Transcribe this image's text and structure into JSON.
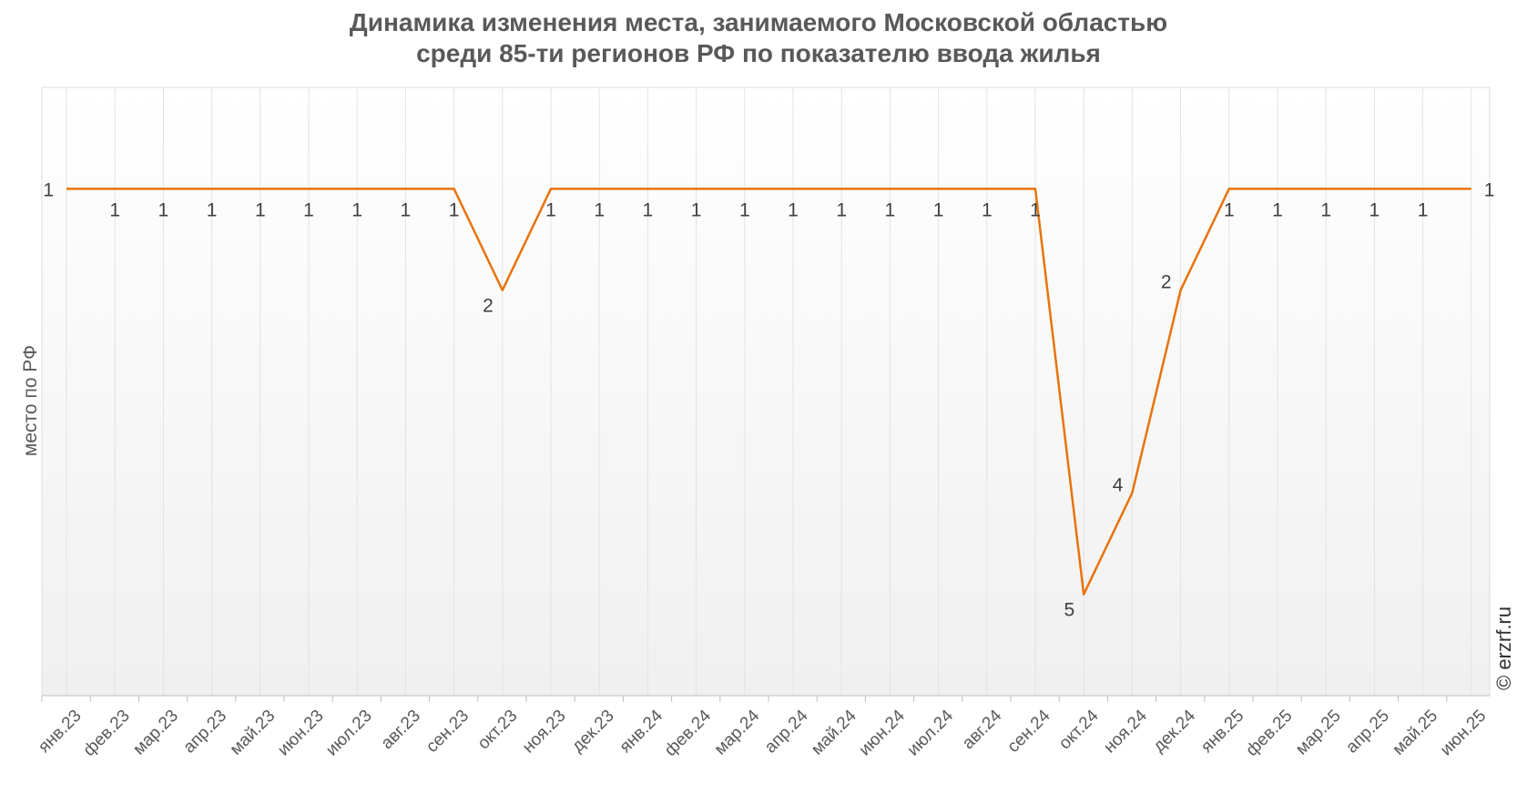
{
  "chart_data": {
    "type": "line",
    "title": [
      "Динамика изменения места, занимаемого Московской областью",
      "среди 85-ти регионов РФ по показателю ввода жилья"
    ],
    "ylabel": "место по РФ",
    "xlabel": "",
    "y_inverted": true,
    "ylim": [
      0,
      6
    ],
    "grid": "vertical",
    "categories": [
      "янв.23",
      "фев.23",
      "мар.23",
      "апр.23",
      "май.23",
      "июн.23",
      "июл.23",
      "авг.23",
      "сен.23",
      "окт.23",
      "ноя.23",
      "дек.23",
      "янв.24",
      "фев.24",
      "мар.24",
      "апр.24",
      "май.24",
      "июн.24",
      "июл.24",
      "авг.24",
      "сен.24",
      "окт.24",
      "ноя.24",
      "дек.24",
      "янв.25",
      "фев.25",
      "мар.25",
      "апр.25",
      "май.25",
      "июн.25"
    ],
    "series": [
      {
        "color": "#E8730C",
        "values": [
          1,
          1,
          1,
          1,
          1,
          1,
          1,
          1,
          1,
          2,
          1,
          1,
          1,
          1,
          1,
          1,
          1,
          1,
          1,
          1,
          1,
          5,
          4,
          2,
          1,
          1,
          1,
          1,
          1,
          1
        ]
      }
    ]
  },
  "watermark": "© erzrf.ru"
}
